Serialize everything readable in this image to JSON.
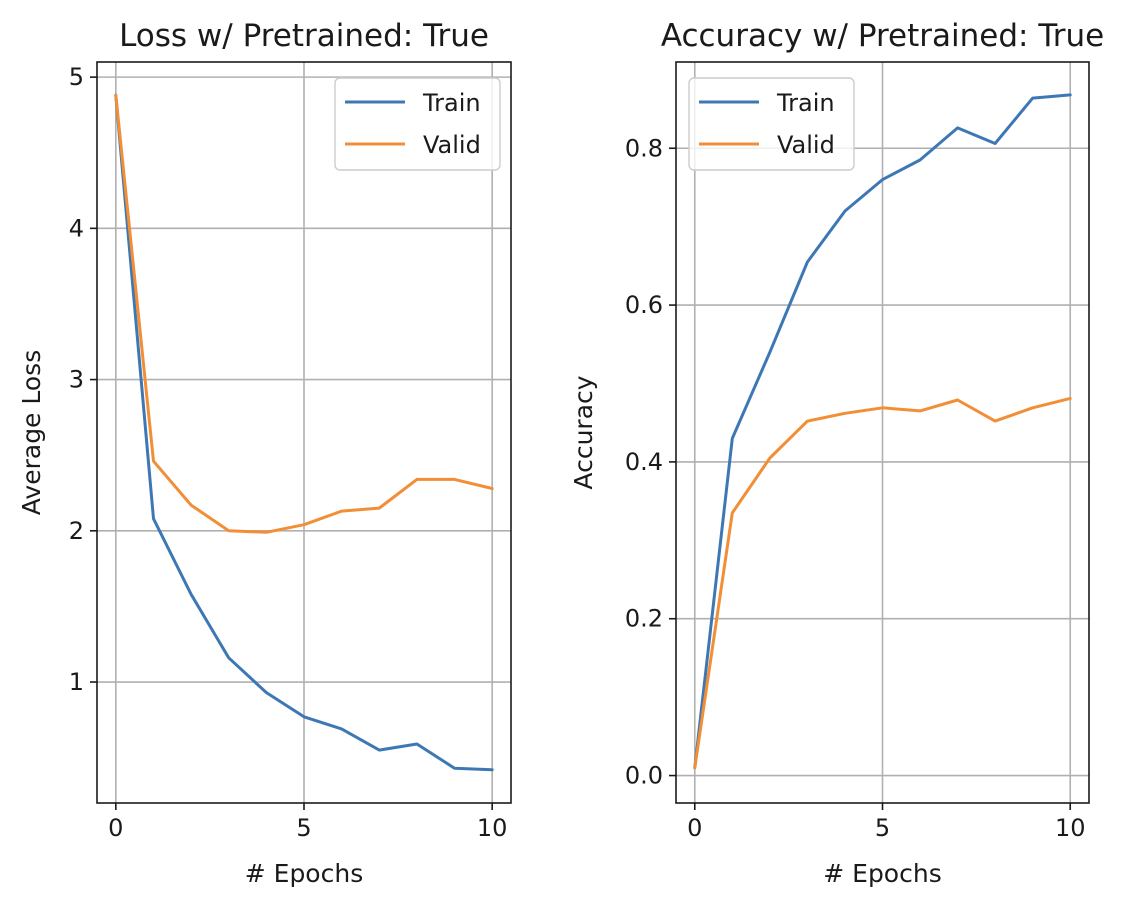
{
  "chart_data": [
    {
      "type": "line",
      "title": "Loss w/ Pretrained: True",
      "xlabel": "# Epochs",
      "ylabel": "Average Loss",
      "xlim": [
        -0.5,
        10.5
      ],
      "ylim": [
        0.2,
        5.1
      ],
      "xticks": [
        0,
        5,
        10
      ],
      "xtick_labels": [
        "0",
        "5",
        "10"
      ],
      "yticks": [
        1,
        2,
        3,
        4,
        5
      ],
      "ytick_labels": [
        "1",
        "2",
        "3",
        "4",
        "5"
      ],
      "grid": true,
      "legend_position": "top-right",
      "x": [
        0,
        1,
        2,
        3,
        4,
        5,
        6,
        7,
        8,
        9,
        10
      ],
      "series": [
        {
          "name": "Train",
          "color": "#3d78b5",
          "values": [
            4.88,
            2.08,
            1.58,
            1.16,
            0.93,
            0.77,
            0.69,
            0.55,
            0.59,
            0.43,
            0.42
          ]
        },
        {
          "name": "Valid",
          "color": "#f28e35",
          "values": [
            4.88,
            2.46,
            2.17,
            2.0,
            1.99,
            2.04,
            2.13,
            2.15,
            2.34,
            2.34,
            2.28
          ]
        }
      ]
    },
    {
      "type": "line",
      "title": "Accuracy w/ Pretrained: True",
      "xlabel": "# Epochs",
      "ylabel": "Accuracy",
      "xlim": [
        -0.5,
        10.5
      ],
      "ylim": [
        -0.035,
        0.91
      ],
      "xticks": [
        0,
        5,
        10
      ],
      "xtick_labels": [
        "0",
        "5",
        "10"
      ],
      "yticks": [
        0.0,
        0.2,
        0.4,
        0.6,
        0.8
      ],
      "ytick_labels": [
        "0.0",
        "0.2",
        "0.4",
        "0.6",
        "0.8"
      ],
      "grid": true,
      "legend_position": "top-left",
      "x": [
        0,
        1,
        2,
        3,
        4,
        5,
        6,
        7,
        8,
        9,
        10
      ],
      "series": [
        {
          "name": "Train",
          "color": "#3d78b5",
          "values": [
            0.01,
            0.43,
            0.54,
            0.655,
            0.72,
            0.76,
            0.785,
            0.826,
            0.806,
            0.864,
            0.868
          ]
        },
        {
          "name": "Valid",
          "color": "#f28e35",
          "values": [
            0.01,
            0.335,
            0.405,
            0.452,
            0.462,
            0.469,
            0.465,
            0.479,
            0.452,
            0.469,
            0.481
          ]
        }
      ]
    }
  ]
}
